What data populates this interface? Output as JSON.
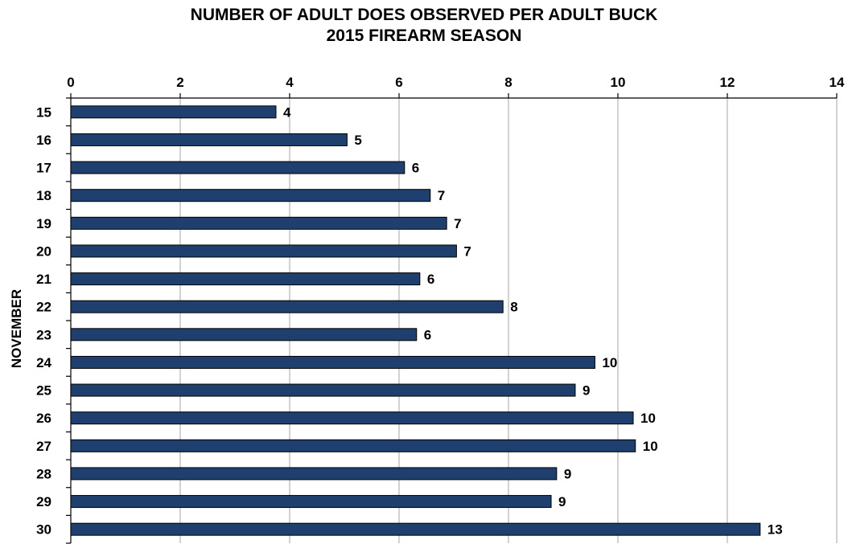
{
  "chart_data": {
    "type": "bar",
    "orientation": "horizontal",
    "title_lines": [
      "NUMBER OF ADULT DOES OBSERVED PER ADULT BUCK",
      "2015 FIREARM SEASON"
    ],
    "ylabel": "NOVEMBER",
    "xlabel": "",
    "categories": [
      "15",
      "16",
      "17",
      "18",
      "19",
      "20",
      "21",
      "22",
      "23",
      "24",
      "25",
      "26",
      "27",
      "28",
      "29",
      "30"
    ],
    "values": [
      3.75,
      5.05,
      6.1,
      6.57,
      6.87,
      7.05,
      6.38,
      7.9,
      6.32,
      9.58,
      9.22,
      10.28,
      10.32,
      8.88,
      8.78,
      12.6
    ],
    "data_labels": [
      "4",
      "5",
      "6",
      "7",
      "7",
      "7",
      "6",
      "8",
      "6",
      "10",
      "9",
      "10",
      "10",
      "9",
      "9",
      "13"
    ],
    "xlim": [
      0,
      14
    ],
    "x_ticks": [
      0,
      2,
      4,
      6,
      8,
      10,
      12,
      14
    ],
    "x_axis_position": "top",
    "grid": true,
    "bar_color": "#1f3f6e"
  }
}
